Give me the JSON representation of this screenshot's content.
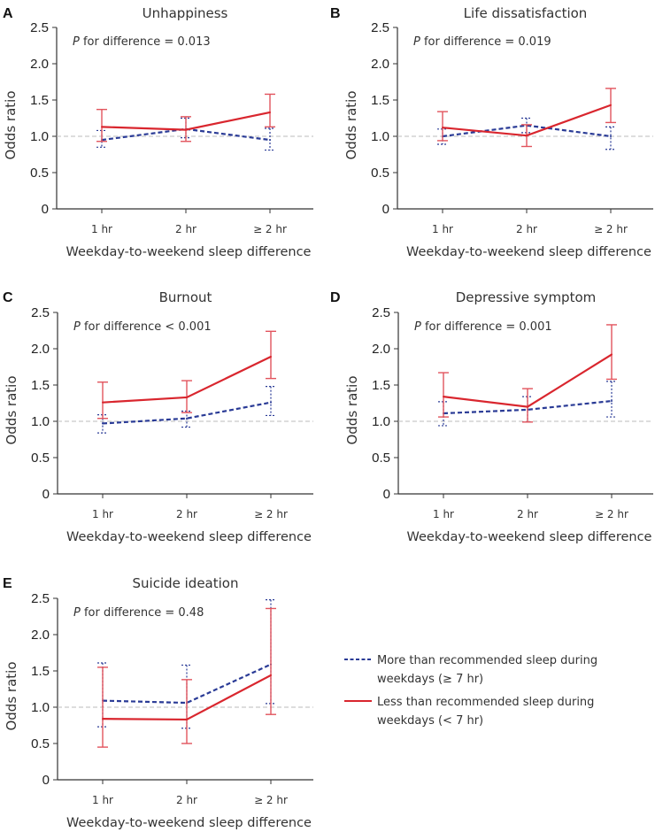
{
  "colors": {
    "more_sleep": "#2a3b96",
    "less_sleep": "#d9262e",
    "less_sleep_errorbar": "#e2545d",
    "reference_line": "#bbbbbb",
    "axis": "#333333"
  },
  "legend": {
    "items": [
      {
        "series": "more",
        "line1": "More than recommended sleep during",
        "line2": "weekdays (≥ 7 hr)",
        "style": "dashed"
      },
      {
        "series": "less",
        "line1": "Less than recommended sleep during",
        "line2": "weekdays (< 7 hr)",
        "style": "solid"
      }
    ]
  },
  "chart_data": [
    {
      "panel": "A",
      "type": "line",
      "title": "Unhappiness",
      "annotation_p": "P",
      "annotation_rest": " for difference = 0.013",
      "xlabel": "Weekday-to-weekend sleep difference",
      "ylabel": "Odds ratio",
      "categories": [
        "1 hr",
        "2 hr",
        "≥ 2 hr"
      ],
      "ylim": [
        0,
        2.5
      ],
      "yticks": [
        0,
        0.5,
        1.0,
        1.5,
        2.0,
        2.5
      ],
      "ytick_labels": [
        "0",
        "0.5",
        "1.0",
        "1.5",
        "2.0",
        "2.5"
      ],
      "reference_line": 1.0,
      "grid": false,
      "series": [
        {
          "name": "More than recommended sleep during weekdays (≥ 7 hr)",
          "key": "more",
          "values": [
            0.95,
            1.1,
            0.95
          ],
          "lower": [
            0.85,
            0.98,
            0.81
          ],
          "upper": [
            1.08,
            1.25,
            1.11
          ]
        },
        {
          "name": "Less than recommended sleep during weekdays (< 7 hr)",
          "key": "less",
          "values": [
            1.13,
            1.09,
            1.33
          ],
          "lower": [
            0.93,
            0.93,
            1.13
          ],
          "upper": [
            1.37,
            1.27,
            1.58
          ]
        }
      ]
    },
    {
      "panel": "B",
      "type": "line",
      "title": "Life dissatisfaction",
      "annotation_p": "P",
      "annotation_rest": " for difference = 0.019",
      "xlabel": "Weekday-to-weekend sleep difference",
      "ylabel": "Odds ratio",
      "categories": [
        "1 hr",
        "2 hr",
        "≥ 2 hr"
      ],
      "ylim": [
        0,
        2.5
      ],
      "yticks": [
        0,
        0.5,
        1.0,
        1.5,
        2.0,
        2.5
      ],
      "ytick_labels": [
        "0",
        "0.5",
        "1.0",
        "1.5",
        "2.0",
        "2.5"
      ],
      "reference_line": 1.0,
      "grid": false,
      "series": [
        {
          "name": "More than recommended sleep during weekdays (≥ 7 hr)",
          "key": "more",
          "values": [
            1.0,
            1.15,
            1.0
          ],
          "lower": [
            0.89,
            1.05,
            0.82
          ],
          "upper": [
            1.1,
            1.25,
            1.13
          ]
        },
        {
          "name": "Less than recommended sleep during weekdays (< 7 hr)",
          "key": "less",
          "values": [
            1.12,
            1.01,
            1.43
          ],
          "lower": [
            0.94,
            0.86,
            1.19
          ],
          "upper": [
            1.34,
            1.16,
            1.66
          ]
        }
      ]
    },
    {
      "panel": "C",
      "type": "line",
      "title": "Burnout",
      "annotation_p": "P",
      "annotation_rest": " for difference < 0.001",
      "xlabel": "Weekday-to-weekend sleep difference",
      "ylabel": "Odds ratio",
      "categories": [
        "1 hr",
        "2 hr",
        "≥ 2 hr"
      ],
      "ylim": [
        0,
        2.5
      ],
      "yticks": [
        0,
        0.5,
        1.0,
        1.5,
        2.0,
        2.5
      ],
      "ytick_labels": [
        "0",
        "0.5",
        "1.0",
        "1.5",
        "2.0",
        "2.5"
      ],
      "reference_line": 1.0,
      "grid": false,
      "series": [
        {
          "name": "More than recommended sleep during weekdays (≥ 7 hr)",
          "key": "more",
          "values": [
            0.97,
            1.04,
            1.26
          ],
          "lower": [
            0.84,
            0.92,
            1.08
          ],
          "upper": [
            1.09,
            1.14,
            1.48
          ]
        },
        {
          "name": "Less than recommended sleep during weekdays (< 7 hr)",
          "key": "less",
          "values": [
            1.26,
            1.33,
            1.89
          ],
          "lower": [
            1.04,
            1.12,
            1.59
          ],
          "upper": [
            1.54,
            1.56,
            2.24
          ]
        }
      ]
    },
    {
      "panel": "D",
      "type": "line",
      "title": "Depressive symptom",
      "annotation_p": "P",
      "annotation_rest": " for difference = 0.001",
      "xlabel": "Weekday-to-weekend sleep difference",
      "ylabel": "Odds ratio",
      "categories": [
        "1 hr",
        "2 hr",
        "≥ 2 hr"
      ],
      "ylim": [
        0,
        2.5
      ],
      "yticks": [
        0,
        0.5,
        1.0,
        1.5,
        2.0,
        2.5
      ],
      "ytick_labels": [
        "0",
        "0.5",
        "1.0",
        "1.5",
        "2.0",
        "2.5"
      ],
      "reference_line": 1.0,
      "grid": false,
      "series": [
        {
          "name": "More than recommended sleep during weekdays (≥ 7 hr)",
          "key": "more",
          "values": [
            1.11,
            1.16,
            1.28
          ],
          "lower": [
            0.94,
            0.99,
            1.06
          ],
          "upper": [
            1.27,
            1.34,
            1.55
          ]
        },
        {
          "name": "Less than recommended sleep during weekdays (< 7 hr)",
          "key": "less",
          "values": [
            1.34,
            1.2,
            1.92
          ],
          "lower": [
            1.06,
            0.99,
            1.58
          ],
          "upper": [
            1.67,
            1.45,
            2.33
          ]
        }
      ]
    },
    {
      "panel": "E",
      "type": "line",
      "title": "Suicide ideation",
      "annotation_p": "P",
      "annotation_rest": " for difference = 0.48",
      "xlabel": "Weekday-to-weekend sleep difference",
      "ylabel": "Odds ratio",
      "categories": [
        "1 hr",
        "2 hr",
        "≥ 2 hr"
      ],
      "ylim": [
        0,
        2.5
      ],
      "yticks": [
        0,
        0.5,
        1.0,
        1.5,
        2.0,
        2.5
      ],
      "ytick_labels": [
        "0",
        "0.5",
        "1.0",
        "1.5",
        "2.0",
        "2.5"
      ],
      "reference_line": 1.0,
      "grid": false,
      "series": [
        {
          "name": "More than recommended sleep during weekdays (≥ 7 hr)",
          "key": "more",
          "values": [
            1.09,
            1.06,
            1.59
          ],
          "lower": [
            0.73,
            0.71,
            1.05
          ],
          "upper": [
            1.61,
            1.58,
            2.48
          ]
        },
        {
          "name": "Less than recommended sleep during weekdays (< 7 hr)",
          "key": "less",
          "values": [
            0.84,
            0.83,
            1.44
          ],
          "lower": [
            0.45,
            0.5,
            0.9
          ],
          "upper": [
            1.55,
            1.38,
            2.36
          ]
        }
      ]
    }
  ]
}
